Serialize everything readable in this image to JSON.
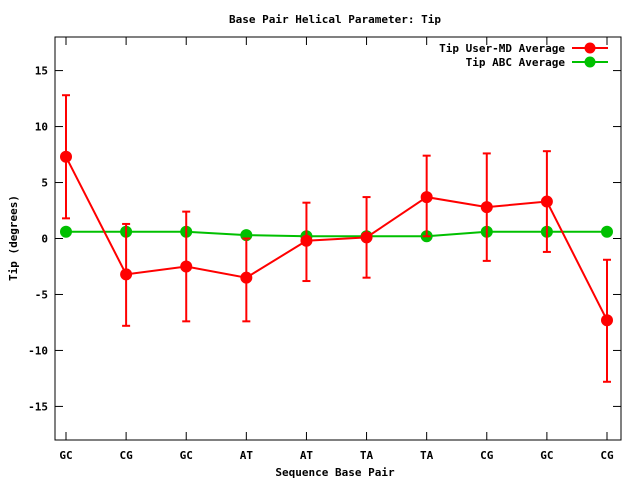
{
  "chart_data": {
    "type": "line",
    "title": "Base Pair Helical Parameter: Tip",
    "xlabel": "Sequence Base Pair",
    "ylabel": "Tip (degrees)",
    "categories": [
      "GC",
      "CG",
      "GC",
      "AT",
      "AT",
      "TA",
      "TA",
      "CG",
      "GC",
      "CG"
    ],
    "ylim": [
      -18,
      18
    ],
    "yticks": [
      -15,
      -10,
      -5,
      0,
      5,
      10,
      15
    ],
    "grid": false,
    "legend_position": "top-right",
    "series": [
      {
        "name": "Tip User-MD Average",
        "color": "#ff0000",
        "values": [
          7.3,
          -3.2,
          -2.5,
          -3.5,
          -0.2,
          0.1,
          3.7,
          2.8,
          3.3,
          -7.3
        ],
        "err_low": [
          1.8,
          -7.8,
          -7.4,
          -7.4,
          -3.8,
          -3.5,
          0.2,
          -2.0,
          -1.2,
          -12.8
        ],
        "err_high": [
          12.8,
          1.3,
          2.4,
          0.0,
          3.2,
          3.7,
          7.4,
          7.6,
          7.8,
          -1.9
        ]
      },
      {
        "name": "Tip ABC Average",
        "color": "#00c000",
        "values": [
          0.6,
          0.6,
          0.6,
          0.3,
          0.2,
          0.2,
          0.2,
          0.6,
          0.6,
          0.6
        ]
      }
    ]
  }
}
